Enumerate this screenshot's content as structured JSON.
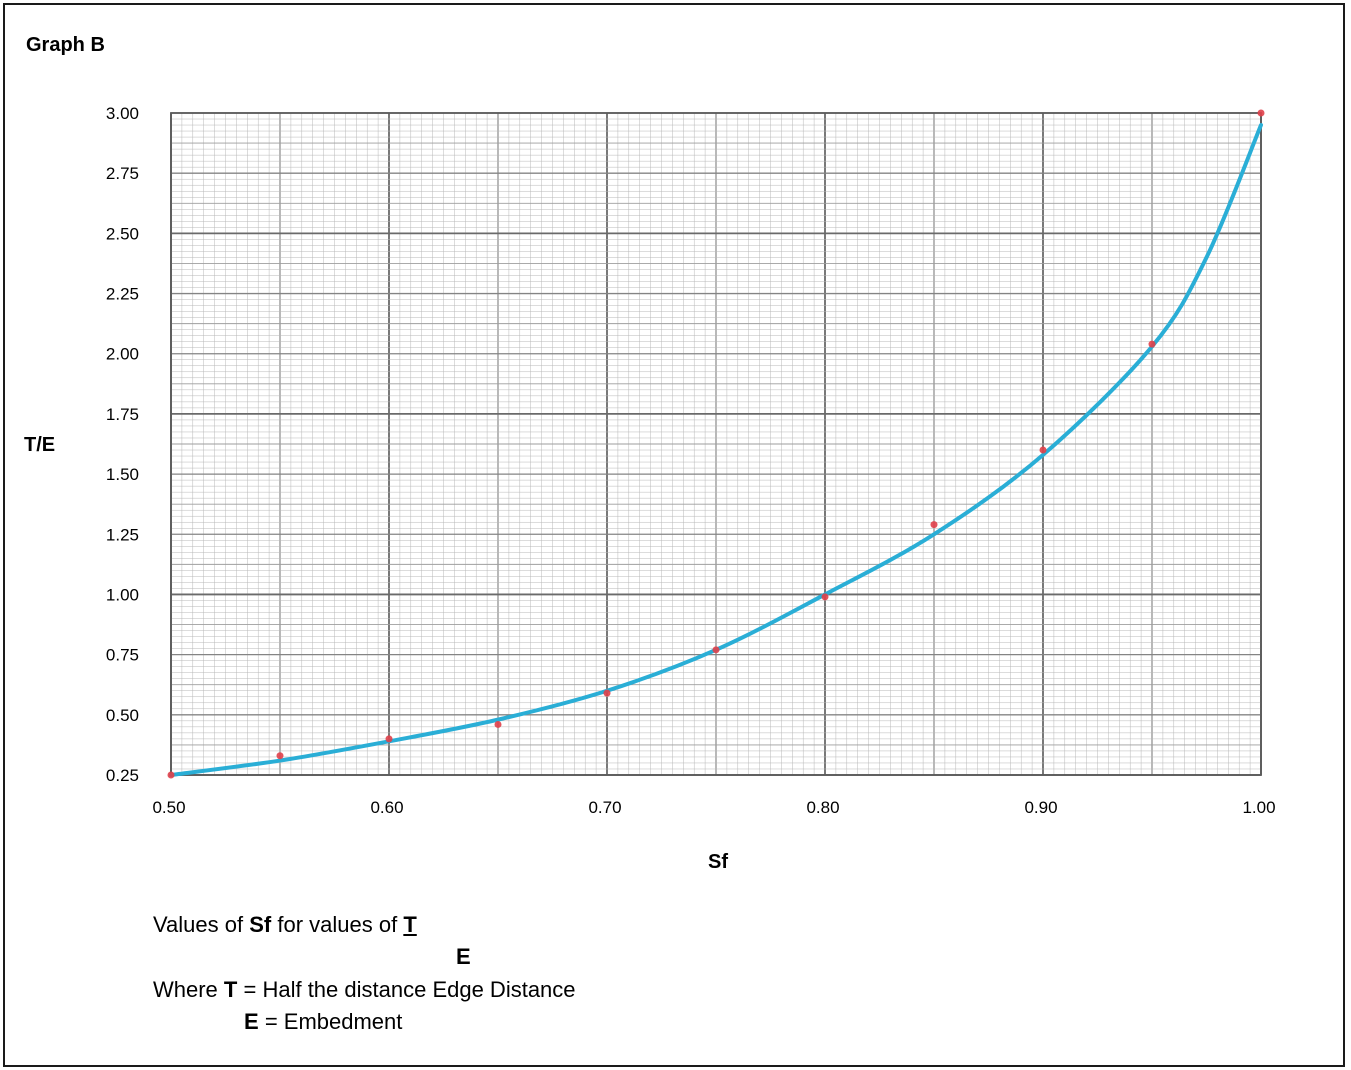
{
  "title": "Graph B",
  "chart_data": {
    "type": "line",
    "xlabel": "Sf",
    "ylabel": "T/E",
    "xlim": [
      0.5,
      1.0
    ],
    "ylim": [
      0.25,
      3.0
    ],
    "x_ticks": [
      "0.50",
      "0.60",
      "0.70",
      "0.80",
      "0.90",
      "1.00"
    ],
    "y_ticks": [
      "0.25",
      "0.50",
      "0.75",
      "1.00",
      "1.25",
      "1.50",
      "1.75",
      "2.00",
      "2.25",
      "2.50",
      "2.75",
      "3.00"
    ],
    "grid": true,
    "curve": {
      "color": "#2aaed6",
      "x": [
        0.5,
        0.55,
        0.6,
        0.65,
        0.7,
        0.75,
        0.8,
        0.85,
        0.9,
        0.95,
        0.975,
        1.0
      ],
      "y": [
        0.25,
        0.31,
        0.39,
        0.48,
        0.6,
        0.77,
        1.0,
        1.25,
        1.58,
        2.03,
        2.4,
        2.95
      ]
    },
    "points": {
      "color": "#e0404a",
      "x": [
        0.5,
        0.55,
        0.6,
        0.65,
        0.7,
        0.75,
        0.8,
        0.85,
        0.9,
        0.95,
        1.0
      ],
      "y": [
        0.25,
        0.33,
        0.4,
        0.46,
        0.59,
        0.77,
        0.99,
        1.29,
        1.6,
        2.04,
        3.0
      ]
    }
  },
  "notes": {
    "line1_pre": "Values of",
    "line1_bold": "Sf",
    "line1_mid": "for values of",
    "frac_num": "T",
    "frac_den": "E",
    "line2_pre": "Where",
    "line2_bold": "T",
    "line2_rest": "=  Half the distance Edge Distance",
    "line3_bold": "E",
    "line3_rest": "= Embedment"
  }
}
